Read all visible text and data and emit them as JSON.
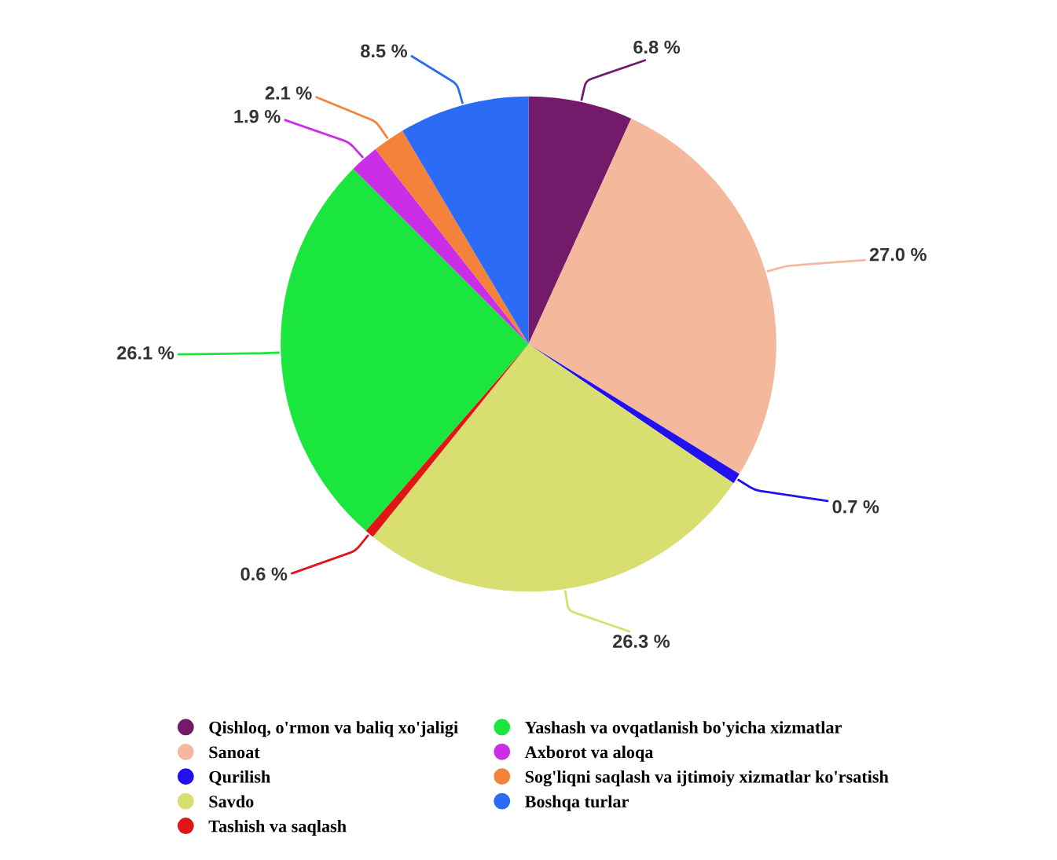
{
  "chart_data": {
    "type": "pie",
    "categories": [
      "Qishloq, o'rmon va baliq xo'jaligi",
      "Sanoat",
      "Qurilish",
      "Savdo",
      "Tashish va saqlash",
      "Yashash va ovqatlanish bo'yicha xizmatlar",
      "Axborot va aloqa",
      "Sog'liqni saqlash va ijtimoiy xizmatlar ko'rsatish",
      "Boshqa turlar"
    ],
    "values": [
      6.8,
      27.0,
      0.7,
      26.3,
      0.6,
      26.1,
      1.9,
      2.1,
      8.5
    ],
    "colors": [
      "#731a6b",
      "#f4b89c",
      "#2211ee",
      "#d8de70",
      "#e01515",
      "#1be63d",
      "#cc2ee8",
      "#f4823a",
      "#2b6bf5"
    ],
    "value_labels": [
      "6.8 %",
      "27.0 %",
      "0.7 %",
      "26.3 %",
      "0.6 %",
      "26.1 %",
      "1.9 %",
      "2.1 %",
      "8.5 %"
    ],
    "legend": "bottom"
  }
}
